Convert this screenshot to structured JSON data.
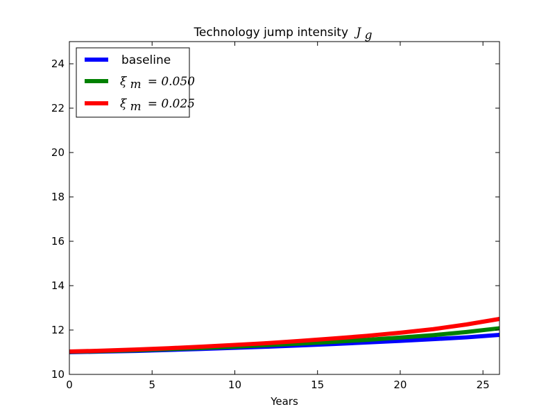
{
  "chart_data": {
    "type": "line",
    "title": "Technology jump intensity",
    "title_math_symbol": "J",
    "title_math_subscript": "g",
    "xlabel": "Years",
    "ylabel": "",
    "xlim": [
      0,
      26
    ],
    "ylim": [
      10,
      25
    ],
    "xticks": [
      0,
      5,
      10,
      15,
      20,
      25
    ],
    "yticks": [
      10,
      12,
      14,
      16,
      18,
      20,
      22,
      24
    ],
    "grid": false,
    "legend_position": "top-left",
    "x": [
      0,
      2,
      4,
      6,
      8,
      10,
      12,
      14,
      16,
      18,
      20,
      22,
      24,
      26
    ],
    "series": [
      {
        "name": "baseline",
        "color": "#0000ff",
        "values": [
          11.0,
          11.03,
          11.06,
          11.1,
          11.15,
          11.2,
          11.25,
          11.31,
          11.37,
          11.44,
          11.51,
          11.59,
          11.67,
          11.78
        ]
      },
      {
        "name": "ξm = 0.050",
        "label_symbol": "ξ",
        "label_subscript": "m",
        "label_value": "= 0.050",
        "color": "#008000",
        "values": [
          11.02,
          11.05,
          11.09,
          11.14,
          11.19,
          11.25,
          11.32,
          11.39,
          11.47,
          11.56,
          11.66,
          11.77,
          11.91,
          12.08
        ]
      },
      {
        "name": "ξm = 0.025",
        "label_symbol": "ξ",
        "label_subscript": "m",
        "label_value": "= 0.025",
        "color": "#ff0000",
        "values": [
          11.03,
          11.07,
          11.12,
          11.18,
          11.25,
          11.33,
          11.41,
          11.51,
          11.62,
          11.74,
          11.88,
          12.04,
          12.25,
          12.5
        ]
      }
    ]
  }
}
